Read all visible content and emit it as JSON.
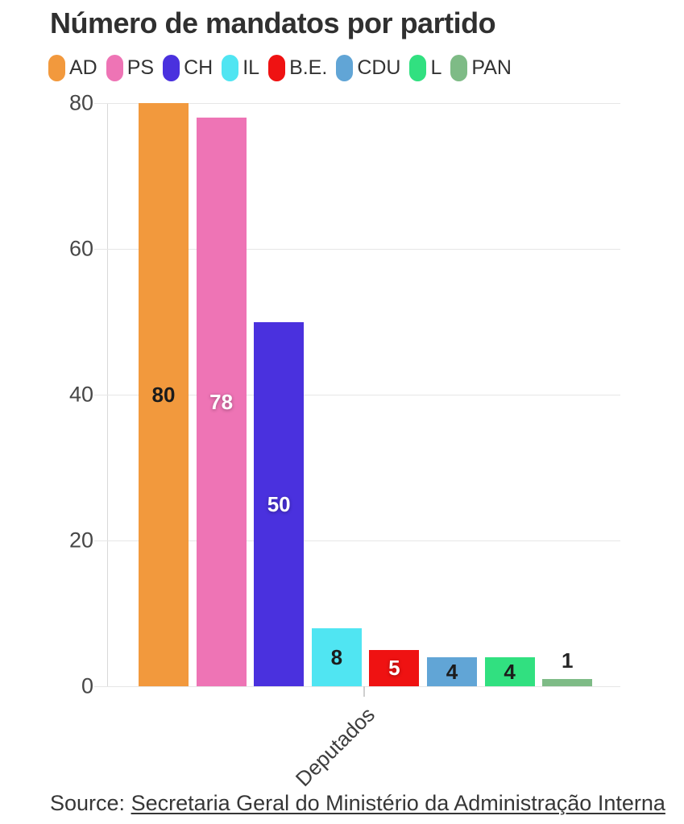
{
  "title": "Número de mandatos por partido",
  "legend": {
    "items": [
      {
        "label": "AD",
        "color": "#F2993D"
      },
      {
        "label": "PS",
        "color": "#EE74B5"
      },
      {
        "label": "CH",
        "color": "#4A31DE"
      },
      {
        "label": "IL",
        "color": "#50E5F2"
      },
      {
        "label": "B.E.",
        "color": "#EF1212"
      },
      {
        "label": "CDU",
        "color": "#61A5D6"
      },
      {
        "label": "L",
        "color": "#31E080"
      },
      {
        "label": "PAN",
        "color": "#7EBB86"
      }
    ]
  },
  "chart_data": {
    "type": "bar",
    "title": "Número de mandatos por partido",
    "categories": [
      "AD",
      "PS",
      "CH",
      "IL",
      "B.E.",
      "CDU",
      "L",
      "PAN"
    ],
    "values": [
      80,
      78,
      50,
      8,
      5,
      4,
      4,
      1
    ],
    "colors": [
      "#F2993D",
      "#EE74B5",
      "#4A31DE",
      "#50E5F2",
      "#EF1212",
      "#61A5D6",
      "#31E080",
      "#7EBB86"
    ],
    "bar_label_colors": [
      "#1c1c1c",
      "#ffffff",
      "#ffffff",
      "#1c1c1c",
      "#ffffff",
      "#1c1c1c",
      "#1c1c1c",
      "#262626"
    ],
    "bar_label_outside": [
      false,
      false,
      false,
      false,
      false,
      false,
      false,
      true
    ],
    "x_tick_label": "Deputados",
    "xlabel": "",
    "ylabel": "",
    "yticks": [
      0,
      20,
      40,
      60,
      80
    ],
    "ylim": [
      0,
      80
    ],
    "grid": "horizontal",
    "legend_position": "top"
  },
  "source": {
    "prefix": "Source: ",
    "link_text": "Secretaria Geral do Ministério da Administração Interna"
  }
}
